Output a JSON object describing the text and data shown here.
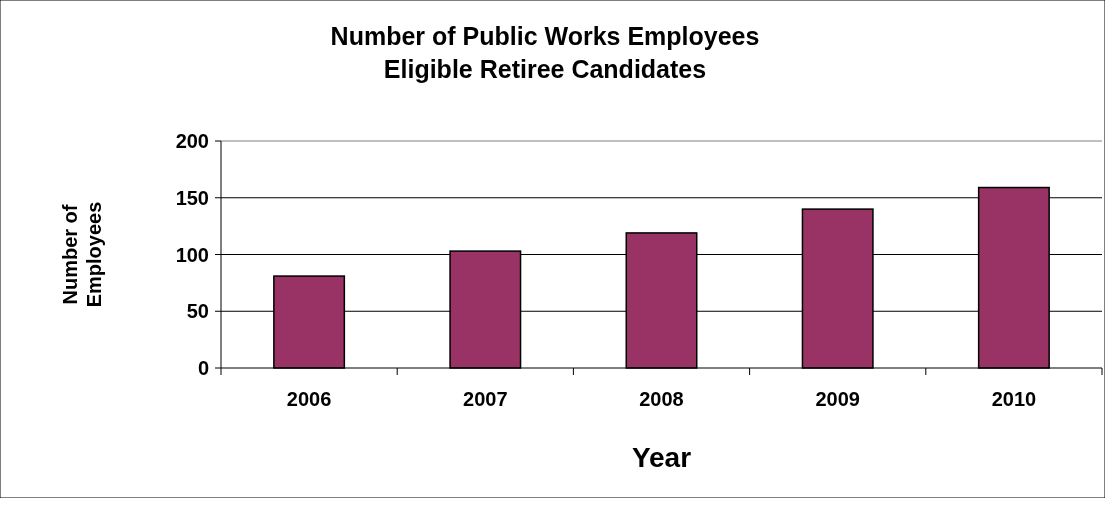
{
  "chart_data": {
    "type": "bar",
    "title": "Number of Public Works Employees\nEligible Retiree Candidates",
    "xlabel": "Year",
    "ylabel": "Number of\nEmployees",
    "categories": [
      "2006",
      "2007",
      "2008",
      "2009",
      "2010"
    ],
    "values": [
      81,
      103,
      119,
      140,
      159
    ],
    "color": "#993366",
    "ylim": [
      0,
      200
    ],
    "yticks": [
      0,
      50,
      100,
      150,
      200
    ],
    "grid": "y"
  }
}
